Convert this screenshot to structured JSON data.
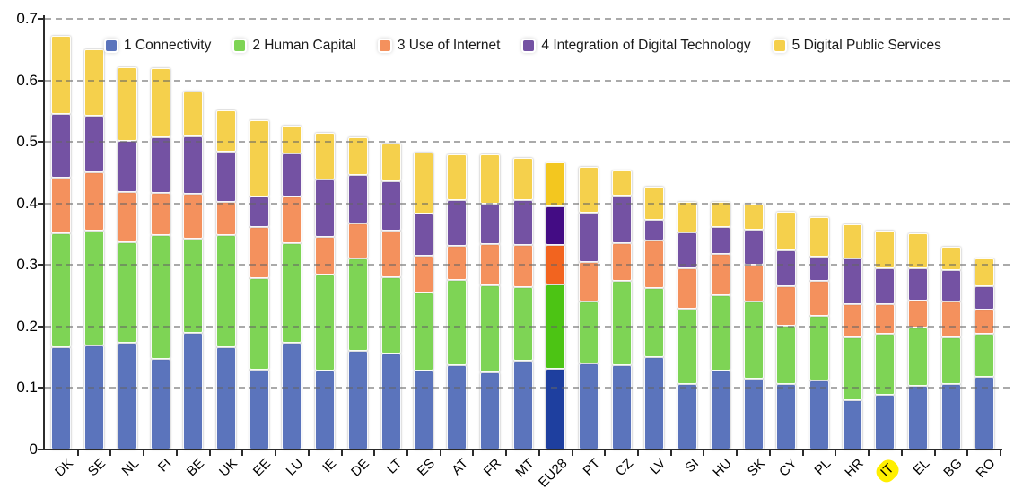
{
  "chart_data": {
    "type": "bar",
    "subtype": "stacked",
    "title": "",
    "xlabel": "",
    "ylabel": "",
    "ylim": [
      0,
      0.7
    ],
    "yticks": [
      0,
      0.1,
      0.2,
      0.3,
      0.4,
      0.5,
      0.6,
      0.7
    ],
    "ytick_labels": [
      "0",
      "0.1",
      "0.2",
      "0.3",
      "0.4",
      "0.5",
      "0.6",
      "0.7"
    ],
    "grid": "horizontal-dashed-over-bars",
    "legend_position": "top-inside",
    "categories": [
      "DK",
      "SE",
      "NL",
      "FI",
      "BE",
      "UK",
      "EE",
      "LU",
      "IE",
      "DE",
      "LT",
      "ES",
      "AT",
      "FR",
      "MT",
      "EU28",
      "PT",
      "CZ",
      "LV",
      "SI",
      "HU",
      "SK",
      "CY",
      "PL",
      "HR",
      "IT",
      "EL",
      "BG",
      "RO"
    ],
    "highlighted_category": "IT",
    "highlight_color": "#ffef00",
    "emphasized_bar": "EU28",
    "series": [
      {
        "name": "1 Connectivity",
        "color": "#5b74bc",
        "emphasis_color": "#1e3f9f",
        "values": [
          0.167,
          0.169,
          0.173,
          0.147,
          0.19,
          0.166,
          0.13,
          0.174,
          0.128,
          0.16,
          0.156,
          0.128,
          0.137,
          0.126,
          0.145,
          0.131,
          0.14,
          0.137,
          0.15,
          0.107,
          0.128,
          0.115,
          0.107,
          0.113,
          0.08,
          0.089,
          0.103,
          0.106,
          0.118
        ]
      },
      {
        "name": "2 Human Capital",
        "color": "#7ed455",
        "emphasis_color": "#4cc414",
        "values": [
          0.184,
          0.187,
          0.164,
          0.201,
          0.153,
          0.183,
          0.148,
          0.161,
          0.157,
          0.15,
          0.124,
          0.127,
          0.139,
          0.141,
          0.119,
          0.137,
          0.1,
          0.137,
          0.112,
          0.122,
          0.123,
          0.125,
          0.094,
          0.104,
          0.103,
          0.099,
          0.096,
          0.077,
          0.07
        ]
      },
      {
        "name": "3 Use of Internet",
        "color": "#f4915d",
        "emphasis_color": "#f2641f",
        "values": [
          0.091,
          0.094,
          0.082,
          0.069,
          0.073,
          0.053,
          0.083,
          0.077,
          0.06,
          0.058,
          0.076,
          0.06,
          0.055,
          0.067,
          0.068,
          0.064,
          0.065,
          0.061,
          0.078,
          0.066,
          0.067,
          0.06,
          0.065,
          0.057,
          0.054,
          0.049,
          0.043,
          0.057,
          0.039
        ]
      },
      {
        "name": "4 Integration of Digital Technology",
        "color": "#7452a3",
        "emphasis_color": "#430c84",
        "values": [
          0.103,
          0.093,
          0.082,
          0.09,
          0.093,
          0.082,
          0.051,
          0.069,
          0.094,
          0.078,
          0.08,
          0.068,
          0.074,
          0.066,
          0.073,
          0.063,
          0.08,
          0.078,
          0.033,
          0.058,
          0.043,
          0.058,
          0.058,
          0.04,
          0.073,
          0.058,
          0.053,
          0.052,
          0.039
        ]
      },
      {
        "name": "5 Digital Public Services",
        "color": "#f5d04c",
        "emphasis_color": "#f3c71f",
        "values": [
          0.127,
          0.107,
          0.121,
          0.113,
          0.073,
          0.067,
          0.123,
          0.046,
          0.076,
          0.061,
          0.061,
          0.1,
          0.075,
          0.08,
          0.069,
          0.072,
          0.075,
          0.041,
          0.054,
          0.05,
          0.041,
          0.042,
          0.063,
          0.064,
          0.056,
          0.061,
          0.057,
          0.037,
          0.044
        ]
      }
    ]
  }
}
